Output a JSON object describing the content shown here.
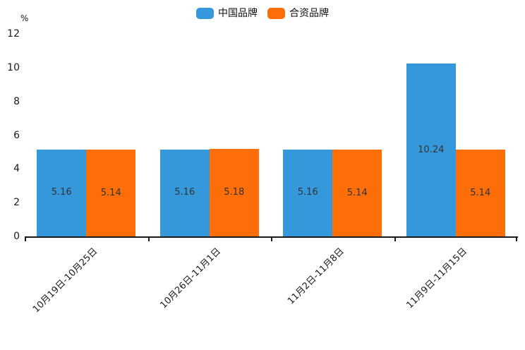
{
  "legend": {
    "items": [
      {
        "label": "中国品牌",
        "color": "#3498db"
      },
      {
        "label": "合资品牌",
        "color": "#fd6e08"
      }
    ]
  },
  "chart_data": {
    "type": "bar",
    "title": "",
    "ylabel": "%",
    "xlabel": "",
    "ylim": [
      0,
      12
    ],
    "yticks": [
      0,
      2,
      4,
      6,
      8,
      10,
      12
    ],
    "grid": false,
    "legend_position": "top-center",
    "value_labels": true,
    "categories": [
      "10月19日-10月25日",
      "10月26日-11月1日",
      "11月2日-11月8日",
      "11月9日-11月15日"
    ],
    "series": [
      {
        "name": "中国品牌",
        "color": "#3498db",
        "values": [
          5.16,
          5.16,
          5.16,
          10.24
        ]
      },
      {
        "name": "合资品牌",
        "color": "#fd6e08",
        "values": [
          5.14,
          5.18,
          5.14,
          5.14
        ]
      }
    ]
  }
}
